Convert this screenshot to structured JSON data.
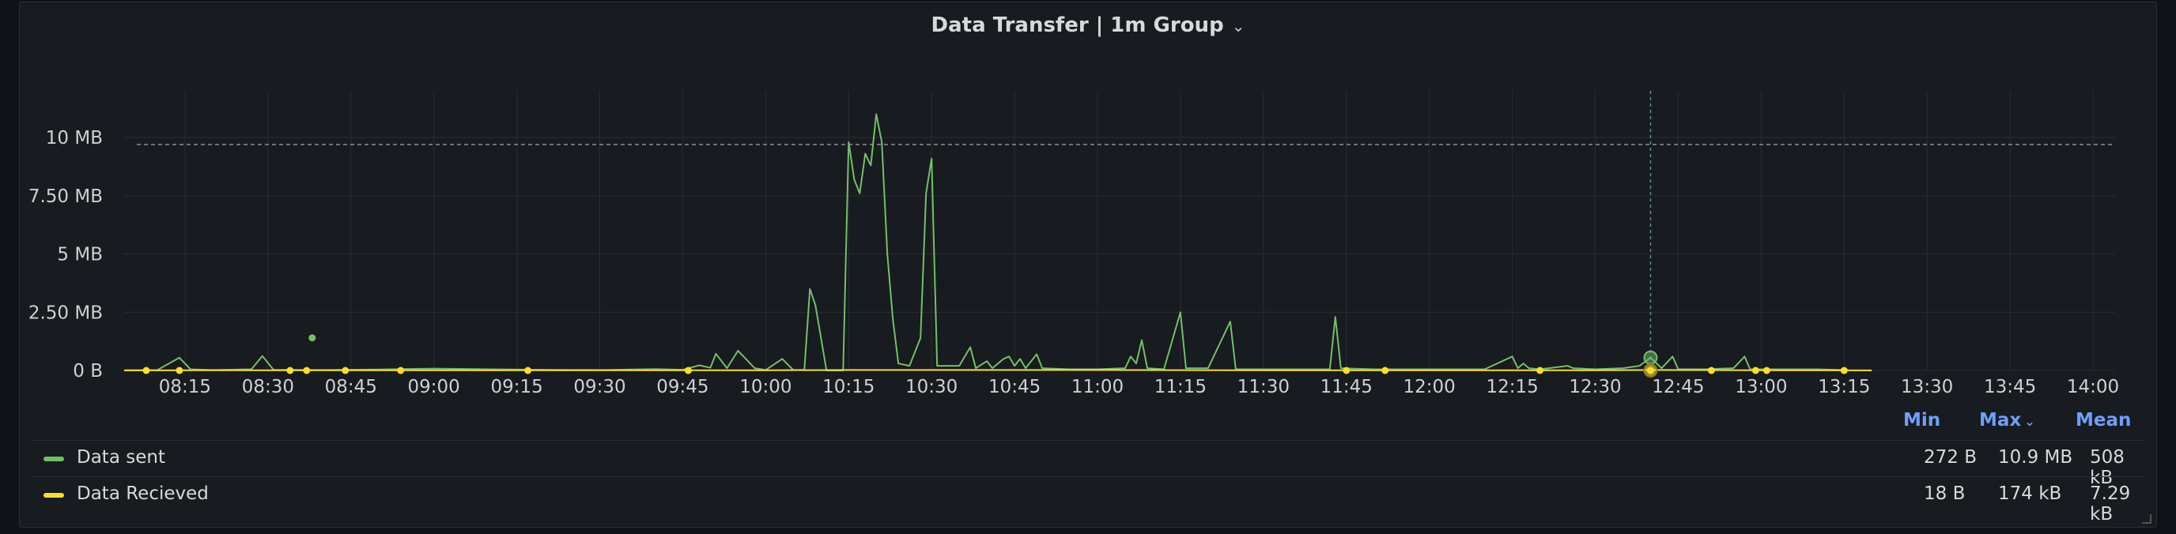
{
  "panel": {
    "title": "Data Transfer | 1m Group",
    "title_icon": "chevron-down-icon"
  },
  "colors": {
    "sent": "#73bf69",
    "received": "#fade2a",
    "grid": "#2a2d33",
    "threshold": "#8e9298",
    "axis_text": "#cfd0d2",
    "legend_header": "#6e9fff"
  },
  "legend": {
    "headers": {
      "min": "Min",
      "max": "Max",
      "mean": "Mean"
    },
    "sort_icon": "chevron-down-icon",
    "rows": [
      {
        "name": "Data sent",
        "min": "272 B",
        "max": "10.9 MB",
        "mean": "508 kB"
      },
      {
        "name": "Data Recieved",
        "min": "18 B",
        "max": "174 kB",
        "mean": "7.29 kB"
      }
    ]
  },
  "chart_data": {
    "type": "line",
    "title": "Data Transfer | 1m Group",
    "xlabel": "",
    "ylabel": "",
    "x_ticks": [
      "08:15",
      "08:30",
      "08:45",
      "09:00",
      "09:15",
      "09:30",
      "09:45",
      "10:00",
      "10:15",
      "10:30",
      "10:45",
      "11:00",
      "11:15",
      "11:30",
      "11:45",
      "12:00",
      "12:15",
      "12:30",
      "12:45",
      "13:00",
      "13:15",
      "13:30",
      "13:45",
      "14:00"
    ],
    "y_ticks": [
      "0 B",
      "2.50 MB",
      "5 MB",
      "7.50 MB",
      "10 MB"
    ],
    "y_tick_values": [
      0,
      2.5,
      5,
      7.5,
      10
    ],
    "xlim": [
      "08:04",
      "14:04"
    ],
    "ylim": [
      0,
      12
    ],
    "grid": true,
    "threshold": 9.7,
    "crosshair_x": "12:40",
    "legend_placement": "bottom",
    "series": [
      {
        "name": "Data sent",
        "points": [
          [
            "08:04",
            0.01
          ],
          [
            "08:10",
            0.02
          ],
          [
            "08:14",
            0.55
          ],
          [
            "08:16",
            0.05
          ],
          [
            "08:20",
            0.02
          ],
          [
            "08:27",
            0.05
          ],
          [
            "08:29",
            0.62
          ],
          [
            "08:31",
            0.03
          ],
          [
            "08:40",
            0.02
          ],
          [
            "08:50",
            0.04
          ],
          [
            "09:00",
            0.08
          ],
          [
            "09:10",
            0.05
          ],
          [
            "09:20",
            0.03
          ],
          [
            "09:30",
            0.02
          ],
          [
            "09:40",
            0.06
          ],
          [
            "09:45",
            0.03
          ],
          [
            "09:48",
            0.22
          ],
          [
            "09:50",
            0.12
          ],
          [
            "09:51",
            0.72
          ],
          [
            "09:53",
            0.1
          ],
          [
            "09:55",
            0.85
          ],
          [
            "09:58",
            0.1
          ],
          [
            "10:00",
            0.02
          ],
          [
            "10:03",
            0.5
          ],
          [
            "10:05",
            0.02
          ],
          [
            "10:06",
            0.02
          ],
          [
            "10:07",
            0.03
          ],
          [
            "10:08",
            3.5
          ],
          [
            "10:09",
            2.8
          ],
          [
            "10:11",
            0.0
          ],
          [
            "10:14",
            0.0
          ],
          [
            "10:15",
            9.8
          ],
          [
            "10:16",
            8.2
          ],
          [
            "10:17",
            7.6
          ],
          [
            "10:18",
            9.3
          ],
          [
            "10:19",
            8.8
          ],
          [
            "10:20",
            11.0
          ],
          [
            "10:21",
            9.8
          ],
          [
            "10:22",
            5.0
          ],
          [
            "10:23",
            2.2
          ],
          [
            "10:24",
            0.3
          ],
          [
            "10:26",
            0.2
          ],
          [
            "10:28",
            1.4
          ],
          [
            "10:29",
            7.6
          ],
          [
            "10:30",
            9.1
          ],
          [
            "10:31",
            0.2
          ],
          [
            "10:33",
            0.2
          ],
          [
            "10:35",
            0.2
          ],
          [
            "10:37",
            1.0
          ],
          [
            "10:38",
            0.1
          ],
          [
            "10:40",
            0.4
          ],
          [
            "10:41",
            0.1
          ],
          [
            "10:43",
            0.5
          ],
          [
            "10:44",
            0.6
          ],
          [
            "10:45",
            0.2
          ],
          [
            "10:46",
            0.5
          ],
          [
            "10:47",
            0.1
          ],
          [
            "10:49",
            0.7
          ],
          [
            "10:50",
            0.1
          ],
          [
            "10:55",
            0.05
          ],
          [
            "11:00",
            0.05
          ],
          [
            "11:05",
            0.1
          ],
          [
            "11:06",
            0.6
          ],
          [
            "11:07",
            0.3
          ],
          [
            "11:08",
            1.3
          ],
          [
            "11:09",
            0.1
          ],
          [
            "11:12",
            0.05
          ],
          [
            "11:15",
            2.5
          ],
          [
            "11:16",
            0.1
          ],
          [
            "11:20",
            0.1
          ],
          [
            "11:24",
            2.1
          ],
          [
            "11:25",
            0.05
          ],
          [
            "11:30",
            0.05
          ],
          [
            "11:40",
            0.05
          ],
          [
            "11:42",
            0.05
          ],
          [
            "11:43",
            2.3
          ],
          [
            "11:44",
            0.1
          ],
          [
            "11:50",
            0.05
          ],
          [
            "12:00",
            0.05
          ],
          [
            "12:10",
            0.05
          ],
          [
            "12:15",
            0.6
          ],
          [
            "12:16",
            0.1
          ],
          [
            "12:17",
            0.3
          ],
          [
            "12:18",
            0.1
          ],
          [
            "12:20",
            0.05
          ],
          [
            "12:25",
            0.2
          ],
          [
            "12:26",
            0.1
          ],
          [
            "12:30",
            0.05
          ],
          [
            "12:35",
            0.1
          ],
          [
            "12:38",
            0.2
          ],
          [
            "12:40",
            0.55
          ],
          [
            "12:42",
            0.1
          ],
          [
            "12:44",
            0.6
          ],
          [
            "12:45",
            0.05
          ],
          [
            "12:50",
            0.05
          ],
          [
            "12:55",
            0.1
          ],
          [
            "12:57",
            0.6
          ],
          [
            "12:58",
            0.05
          ],
          [
            "13:05",
            0.05
          ],
          [
            "13:10",
            0.05
          ],
          [
            "13:15",
            0.02
          ]
        ],
        "isolated_points": [
          [
            "08:38",
            1.4
          ]
        ]
      },
      {
        "name": "Data Recieved",
        "points": [
          [
            "08:04",
            0.005
          ],
          [
            "08:30",
            0.01
          ],
          [
            "09:00",
            0.01
          ],
          [
            "09:30",
            0.01
          ],
          [
            "10:00",
            0.01
          ],
          [
            "10:15",
            0.02
          ],
          [
            "10:30",
            0.02
          ],
          [
            "11:00",
            0.02
          ],
          [
            "11:30",
            0.01
          ],
          [
            "12:00",
            0.01
          ],
          [
            "12:30",
            0.01
          ],
          [
            "12:40",
            0.02
          ],
          [
            "13:00",
            0.01
          ],
          [
            "13:20",
            0.005
          ]
        ],
        "isolated_points": [
          [
            "08:08",
            0.0
          ],
          [
            "08:14",
            0.0
          ],
          [
            "08:34",
            0.0
          ],
          [
            "08:37",
            0.0
          ],
          [
            "08:44",
            0.0
          ],
          [
            "08:54",
            0.0
          ],
          [
            "09:17",
            0.0
          ],
          [
            "09:46",
            0.0
          ],
          [
            "11:45",
            0.0
          ],
          [
            "11:52",
            0.0
          ],
          [
            "12:20",
            0.0
          ],
          [
            "12:40",
            0.0
          ],
          [
            "12:51",
            0.0
          ],
          [
            "12:59",
            0.0
          ],
          [
            "13:01",
            0.0
          ],
          [
            "13:15",
            0.0
          ]
        ]
      }
    ]
  }
}
